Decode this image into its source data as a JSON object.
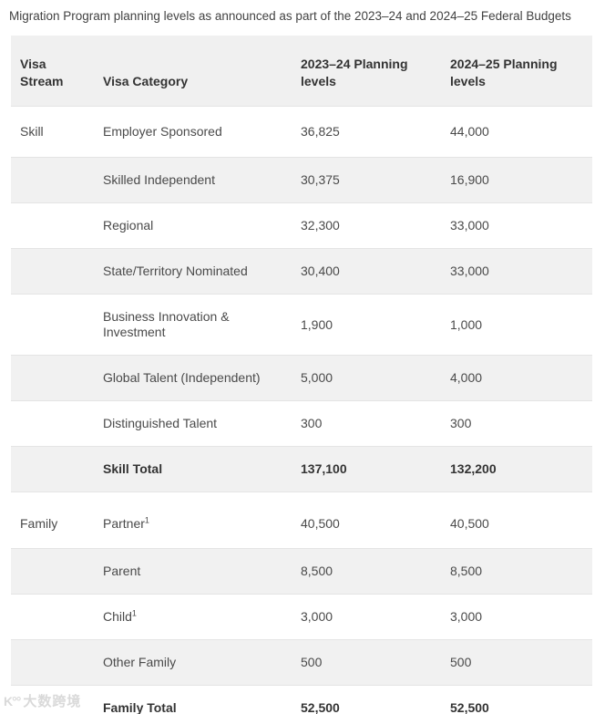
{
  "title": "Migration Program planning levels as announced as part of the 2023–24 and 2024–25 Federal Budgets",
  "table": {
    "columns": [
      "Visa Stream",
      "Visa Category",
      "2023–24 Planning levels",
      "2024–25 Planning levels"
    ],
    "rows": [
      {
        "stream": "Skill",
        "category": "Employer Sponsored",
        "superscript": "",
        "y2023": "36,825",
        "y2024": "44,000",
        "bold": false
      },
      {
        "stream": "",
        "category": "Skilled Independent",
        "superscript": "",
        "y2023": "30,375",
        "y2024": "16,900",
        "bold": false
      },
      {
        "stream": "",
        "category": "Regional",
        "superscript": "",
        "y2023": "32,300",
        "y2024": "33,000",
        "bold": false
      },
      {
        "stream": "",
        "category": "State/Territory Nominated",
        "superscript": "",
        "y2023": "30,400",
        "y2024": "33,000",
        "bold": false
      },
      {
        "stream": "",
        "category": "Business Innovation & Investment",
        "superscript": "",
        "y2023": "1,900",
        "y2024": "1,000",
        "bold": false
      },
      {
        "stream": "",
        "category": "Global Talent (Independent)",
        "superscript": "",
        "y2023": "5,000",
        "y2024": "4,000",
        "bold": false
      },
      {
        "stream": "",
        "category": "Distinguished Talent",
        "superscript": "",
        "y2023": "300",
        "y2024": "300",
        "bold": false
      },
      {
        "stream": "",
        "category": "Skill Total",
        "superscript": "",
        "y2023": "137,100",
        "y2024": "132,200",
        "bold": true
      },
      {
        "stream": "Family",
        "category": "Partner",
        "superscript": "1",
        "y2023": "40,500",
        "y2024": "40,500",
        "bold": false
      },
      {
        "stream": "",
        "category": "Parent",
        "superscript": "",
        "y2023": "8,500",
        "y2024": "8,500",
        "bold": false
      },
      {
        "stream": "",
        "category": "Child",
        "superscript": "1",
        "y2023": "3,000",
        "y2024": "3,000",
        "bold": false
      },
      {
        "stream": "",
        "category": "Other Family",
        "superscript": "",
        "y2023": "500",
        "y2024": "500",
        "bold": false
      },
      {
        "stream": "",
        "category": "Family Total",
        "superscript": "",
        "y2023": "52,500",
        "y2024": "52,500",
        "bold": true
      }
    ]
  },
  "watermark": {
    "logo": "K°°",
    "text": "大数跨境"
  },
  "colors": {
    "header_background": "#f0f0f0",
    "stripe_background": "#f1f1f1",
    "row_border": "#e4e4e4",
    "text": "#4a4a4a",
    "heading_text": "#333333"
  }
}
